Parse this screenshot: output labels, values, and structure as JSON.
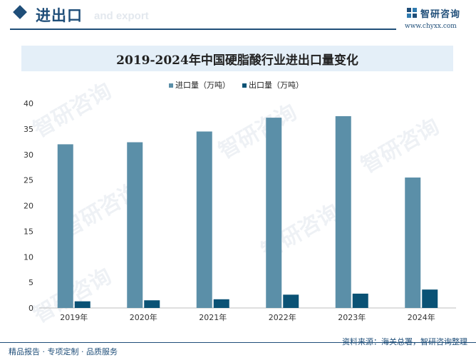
{
  "header": {
    "title": "进出口",
    "subtitle": "and export",
    "logo_name": "智研咨询",
    "logo_url": "www.chyxx.com"
  },
  "colors": {
    "brand": "#1f4e79",
    "import_series": "#5b8fa8",
    "export_series": "#0a5275",
    "title_band": "#e4eff8"
  },
  "chart_data": {
    "type": "bar",
    "title": "2019-2024年中国硬脂酸行业进出口量变化",
    "categories": [
      "2019年",
      "2020年",
      "2021年",
      "2022年",
      "2023年",
      "2024年"
    ],
    "series": [
      {
        "name": "进口量（万吨）",
        "values": [
          32.0,
          32.4,
          34.5,
          37.2,
          37.5,
          25.5
        ],
        "color": "#5b8fa8"
      },
      {
        "name": "出口量（万吨）",
        "values": [
          1.3,
          1.5,
          1.7,
          2.6,
          2.8,
          3.6
        ],
        "color": "#0a5275"
      }
    ],
    "ylim": [
      0,
      40
    ],
    "yticks": [
      0,
      5,
      10,
      15,
      20,
      25,
      30,
      35,
      40
    ],
    "legend_position": "top-center",
    "grid": false
  },
  "footer": {
    "left": "精品报告 · 专项定制 · 品质服务",
    "right": "资料来源：海关总署，智研咨询整理"
  },
  "watermark": "智研咨询"
}
